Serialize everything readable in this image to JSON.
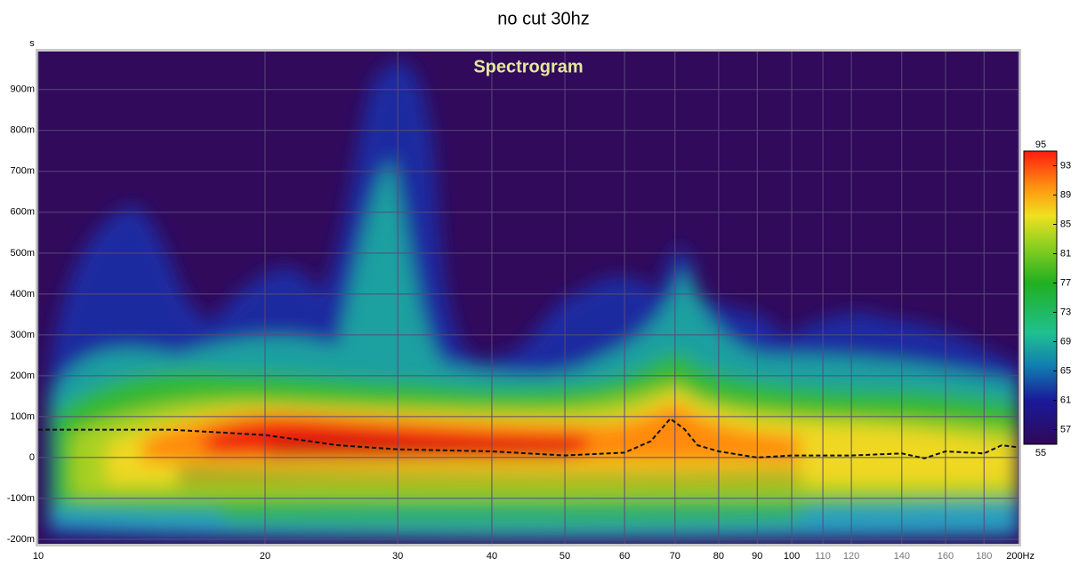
{
  "chart_data": {
    "type": "line",
    "title": "no cut 30hz",
    "subtitle": "Spectrogram",
    "y_label": "s",
    "log_x": true,
    "grid": true,
    "xlim": [
      10,
      200
    ],
    "xticks": [
      10,
      20,
      30,
      40,
      50,
      60,
      70,
      80,
      90,
      100,
      110,
      120,
      140,
      160,
      180,
      {
        "value": 200,
        "label": "200Hz"
      }
    ],
    "ylim": [
      -0.211,
      0.993
    ],
    "yticks": [
      {
        "value": -0.2,
        "label": "-200m"
      },
      {
        "value": -0.1,
        "label": "-100m"
      },
      0,
      {
        "value": 0.1,
        "label": "100m"
      },
      {
        "value": 0.2,
        "label": "200m"
      },
      {
        "value": 0.3,
        "label": "300m"
      },
      {
        "value": 0.4,
        "label": "400m"
      },
      {
        "value": 0.5,
        "label": "500m"
      },
      {
        "value": 0.6,
        "label": "600m"
      },
      {
        "value": 0.7,
        "label": "700m"
      },
      {
        "value": 0.8,
        "label": "800m"
      },
      {
        "value": 0.9,
        "label": "900m"
      }
    ],
    "colorbar": {
      "lim": [
        55,
        95
      ],
      "ticks": [
        55,
        57,
        61,
        65,
        69,
        73,
        77,
        81,
        85,
        89,
        93,
        95
      ]
    },
    "series": [
      {
        "color": "#111111",
        "x": [
          10,
          15,
          20,
          25,
          30,
          40,
          50,
          60,
          65,
          69,
          72,
          75,
          80,
          90,
          100,
          120,
          140,
          150,
          160,
          180,
          190,
          200
        ],
        "values": [
          0.068,
          0.068,
          0.055,
          0.03,
          0.02,
          0.015,
          0.005,
          0.012,
          0.04,
          0.095,
          0.07,
          0.03,
          0.015,
          0.0,
          0.005,
          0.005,
          0.01,
          -0.002,
          0.015,
          0.01,
          0.03,
          0.025
        ]
      }
    ]
  }
}
